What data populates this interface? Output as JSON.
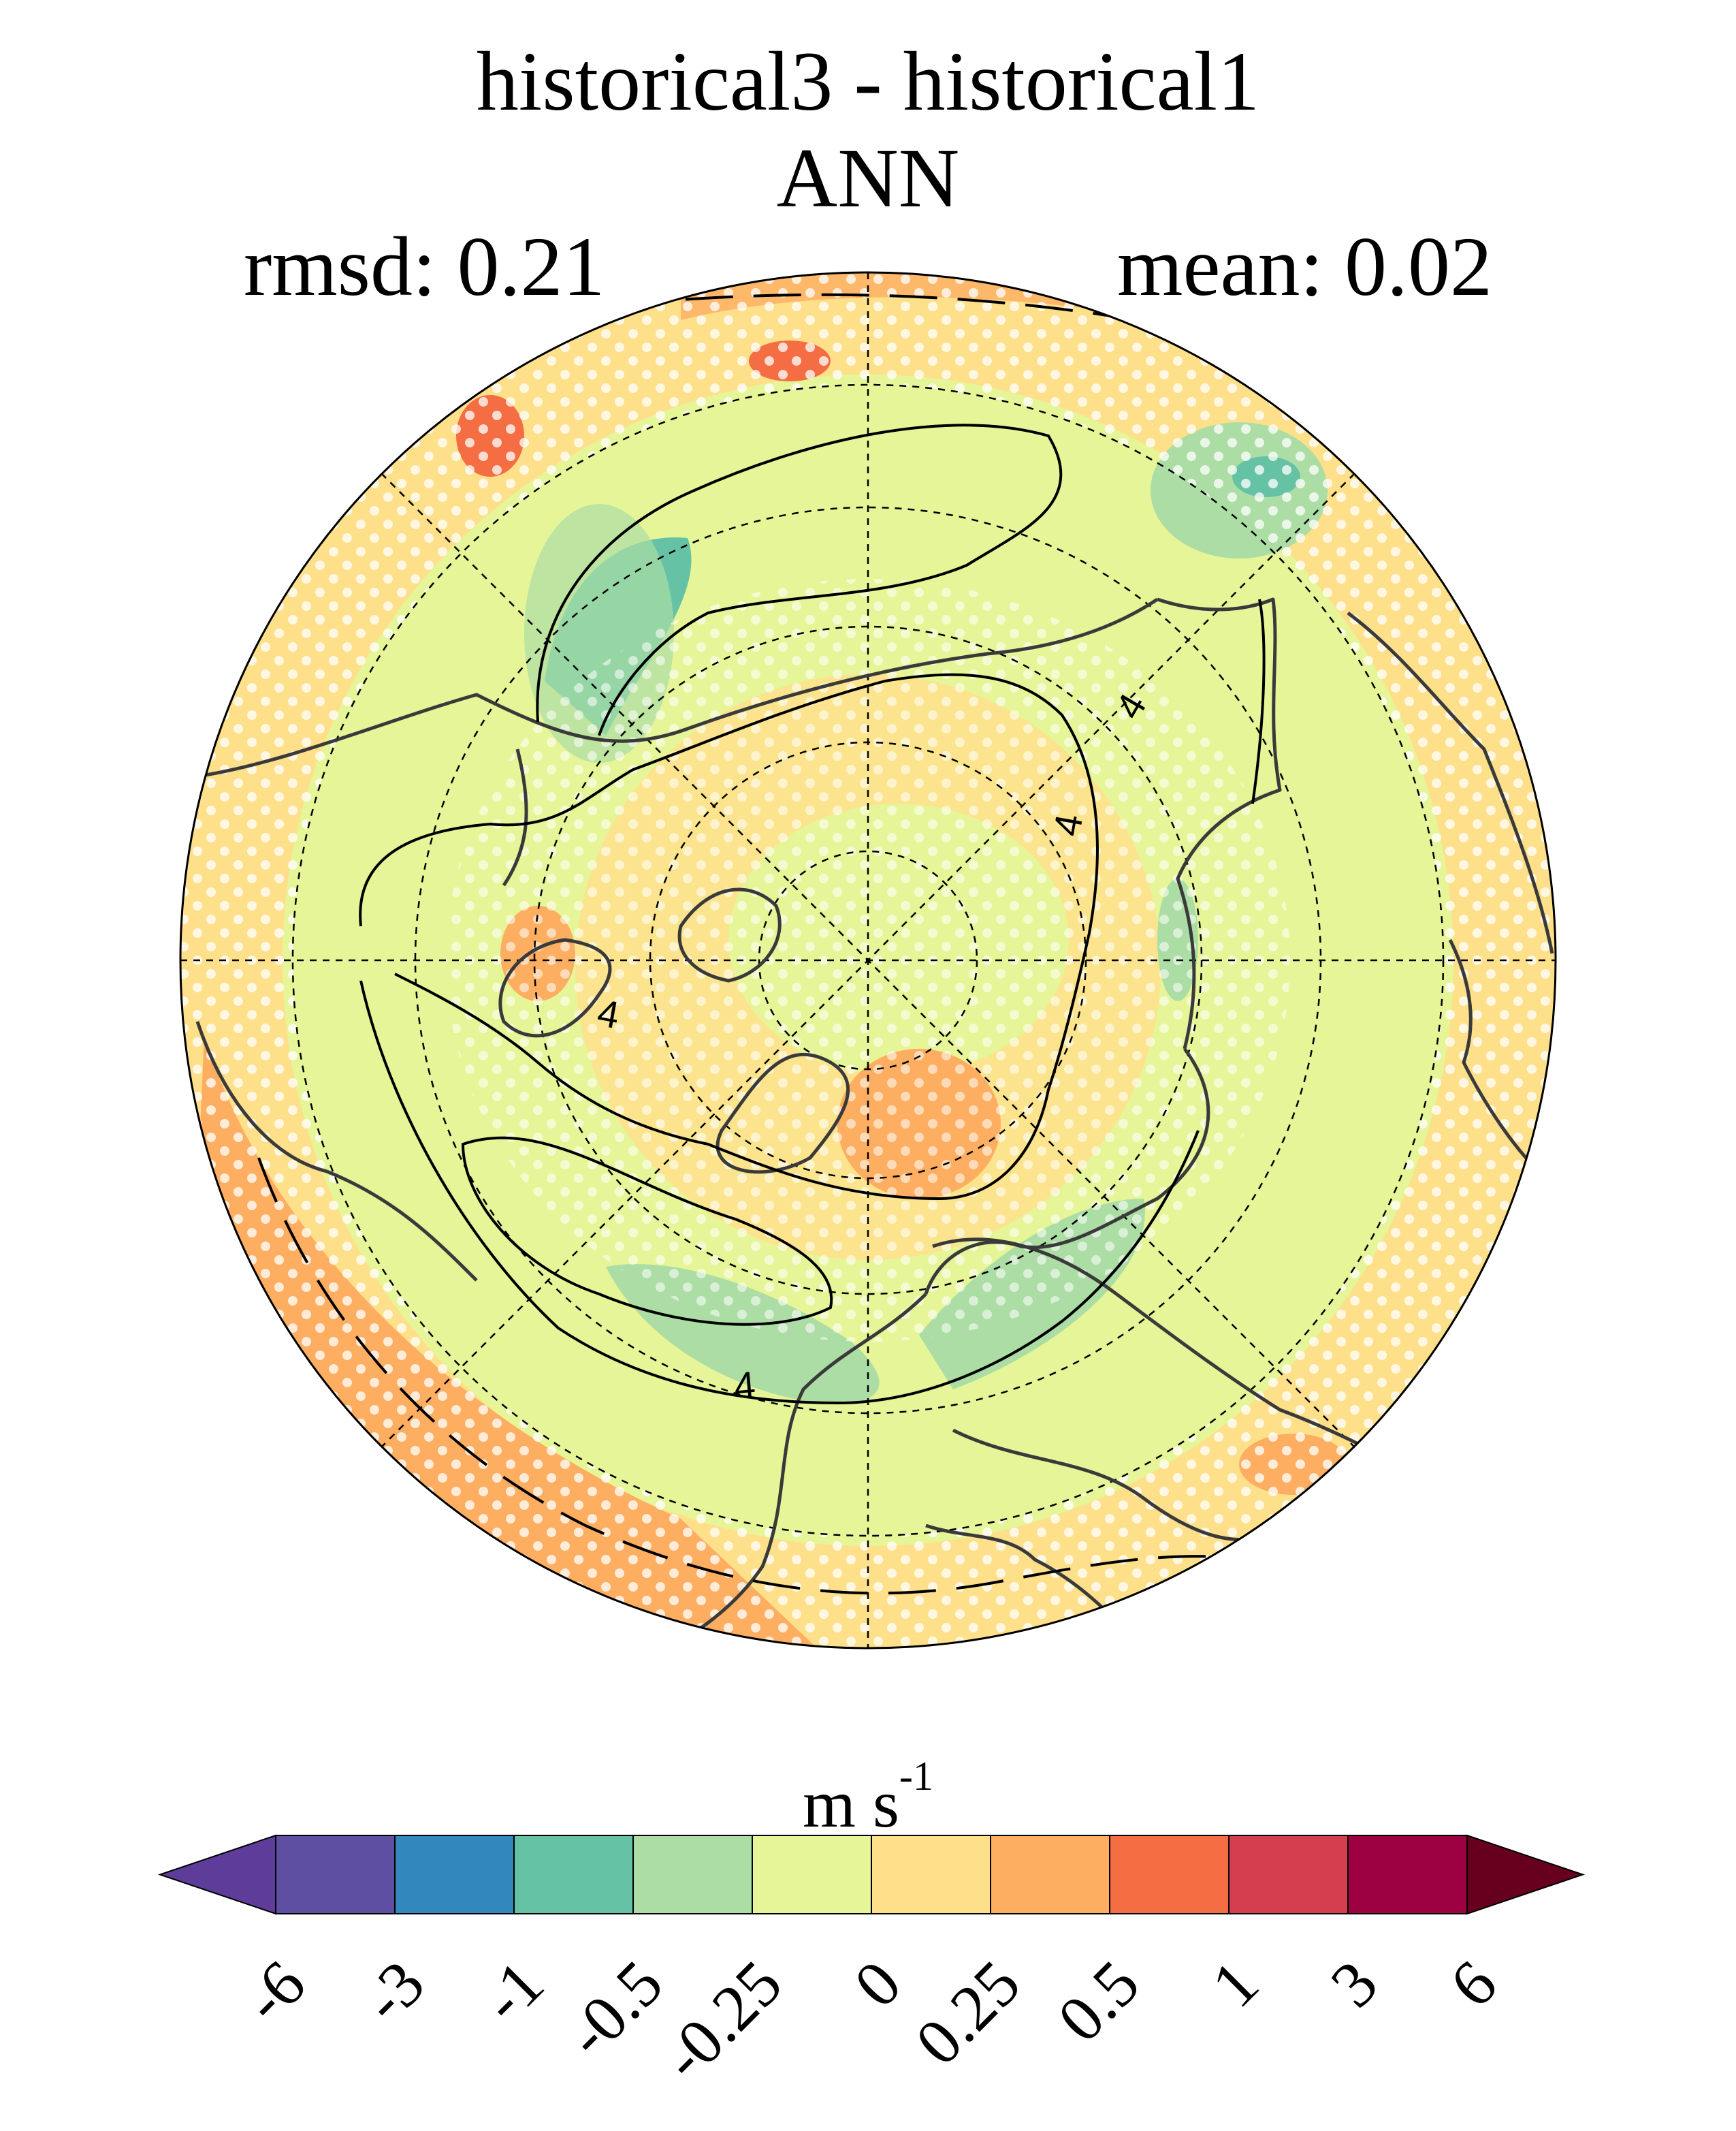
{
  "title": "historical3 - historical1",
  "season": "ANN",
  "stats": {
    "rmsd_label": "rmsd: 0.21",
    "mean_label": "mean: 0.02"
  },
  "colorbar": {
    "unit_base": "m s",
    "unit_exp": "-1",
    "ticks": [
      "-6",
      "-3",
      "-1",
      "-0.5",
      "-0.25",
      "0",
      "0.25",
      "0.5",
      "1",
      "3",
      "6"
    ],
    "colors": [
      "#5e3c99",
      "#5e4fa2",
      "#3288bd",
      "#66c2a5",
      "#abdda4",
      "#e6f598",
      "#fee08b",
      "#fdae61",
      "#f46d43",
      "#d53e4f",
      "#9e0142",
      "#67001f"
    ]
  },
  "map": {
    "projection": "north-polar-stereographic",
    "contour_label": "4",
    "stippling": "white-dots",
    "colors": {
      "background": "#fee08b",
      "coast": "#3a3a3a",
      "contour": "#000000",
      "grid": "#000000",
      "stipple": "#ffffff"
    }
  }
}
